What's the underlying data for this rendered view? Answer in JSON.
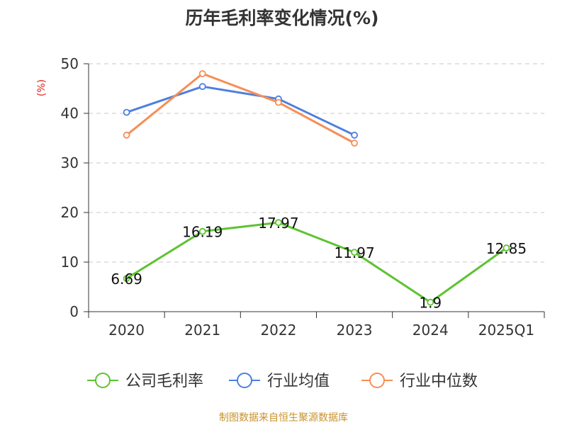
{
  "chart_data": {
    "type": "line",
    "title": "历年毛利率变化情况(%)",
    "ylabel": "(%)",
    "xlabel": "",
    "ylim": [
      0,
      50
    ],
    "yticks": [
      0,
      10,
      20,
      30,
      40,
      50
    ],
    "grid": true,
    "legend_position": "bottom",
    "categories": [
      "2020",
      "2021",
      "2022",
      "2023",
      "2024",
      "2025Q1"
    ],
    "series": [
      {
        "name": "公司毛利率",
        "color": "#5cc330",
        "values": [
          6.69,
          16.19,
          17.97,
          11.97,
          1.9,
          12.85
        ],
        "labels": [
          "6.69",
          "16.19",
          "17.97",
          "11.97",
          "1.9",
          "12.85"
        ],
        "show_labels": true
      },
      {
        "name": "行业均值",
        "color": "#4e7fde",
        "values": [
          40.2,
          45.4,
          42.9,
          35.6,
          null,
          null
        ],
        "show_labels": false
      },
      {
        "name": "行业中位数",
        "color": "#f68e57",
        "values": [
          35.6,
          48.0,
          42.2,
          34.0,
          null,
          null
        ],
        "show_labels": false
      }
    ],
    "source_note": "制图数据来自恒生聚源数据库",
    "source_color": "#c8922a",
    "ylabel_color": "#e0231b"
  }
}
